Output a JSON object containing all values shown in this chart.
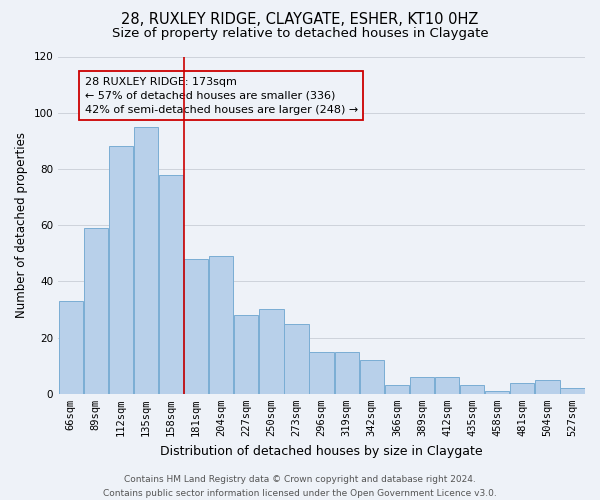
{
  "title": "28, RUXLEY RIDGE, CLAYGATE, ESHER, KT10 0HZ",
  "subtitle": "Size of property relative to detached houses in Claygate",
  "xlabel": "Distribution of detached houses by size in Claygate",
  "ylabel": "Number of detached properties",
  "categories": [
    "66sqm",
    "89sqm",
    "112sqm",
    "135sqm",
    "158sqm",
    "181sqm",
    "204sqm",
    "227sqm",
    "250sqm",
    "273sqm",
    "296sqm",
    "319sqm",
    "342sqm",
    "366sqm",
    "389sqm",
    "412sqm",
    "435sqm",
    "458sqm",
    "481sqm",
    "504sqm",
    "527sqm"
  ],
  "values": [
    33,
    59,
    88,
    95,
    78,
    48,
    49,
    28,
    30,
    25,
    15,
    15,
    12,
    3,
    6,
    6,
    3,
    1,
    4,
    5,
    2
  ],
  "bar_color": "#b8d0ea",
  "bar_edgecolor": "#7aadd4",
  "background_color": "#eef2f8",
  "vline_color": "#cc0000",
  "vline_index": 5,
  "annotation_line1": "28 RUXLEY RIDGE: 173sqm",
  "annotation_line2": "← 57% of detached houses are smaller (336)",
  "annotation_line3": "42% of semi-detached houses are larger (248) →",
  "annotation_box_edgecolor": "#cc0000",
  "ylim": [
    0,
    120
  ],
  "yticks": [
    0,
    20,
    40,
    60,
    80,
    100,
    120
  ],
  "footer_line1": "Contains HM Land Registry data © Crown copyright and database right 2024.",
  "footer_line2": "Contains public sector information licensed under the Open Government Licence v3.0.",
  "title_fontsize": 10.5,
  "subtitle_fontsize": 9.5,
  "xlabel_fontsize": 9,
  "ylabel_fontsize": 8.5,
  "tick_fontsize": 7.5,
  "annotation_fontsize": 8,
  "footer_fontsize": 6.5
}
